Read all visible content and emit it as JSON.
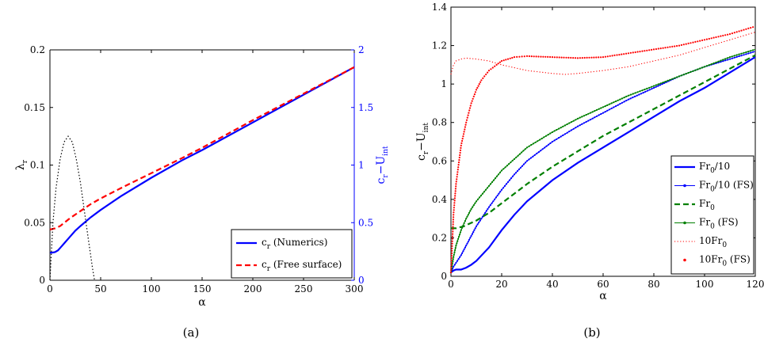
{
  "chart_data": [
    {
      "type": "line",
      "panel_label": "(a)",
      "xlabel": "α",
      "ylabel": {
        "main": "λ",
        "sub": "r"
      },
      "ylabel_right": {
        "main": "c",
        "sub": "r",
        "rest": "−U",
        "sub2": "int"
      },
      "xlim": [
        0,
        300
      ],
      "ylim": [
        0,
        0.2
      ],
      "ylim_right": [
        0,
        2
      ],
      "xticks": [
        "0",
        "50",
        "100",
        "150",
        "200",
        "250",
        "300"
      ],
      "yticks": [
        "0",
        "0.05",
        "0.1",
        "0.15",
        "0.2"
      ],
      "yticks_right": [
        "0",
        "0.5",
        "1",
        "1.5",
        "2"
      ],
      "grid": false,
      "legend_position": "bottom-right",
      "colors": {
        "numerics": "#0000ff",
        "free_surface": "#ff0000",
        "growth": "#000000",
        "right_axis": "#0000ff"
      },
      "series": [
        {
          "name": "c_r (Numerics)",
          "legend": {
            "main": "c",
            "sub": "r",
            "rest": " (Numerics)"
          },
          "axis": "right",
          "style": "solid",
          "x": [
            0,
            2,
            5,
            8,
            10,
            15,
            20,
            25,
            30,
            40,
            50,
            70,
            100,
            130,
            150,
            200,
            250,
            300
          ],
          "y": [
            0.24,
            0.24,
            0.245,
            0.26,
            0.28,
            0.33,
            0.38,
            0.43,
            0.47,
            0.545,
            0.61,
            0.73,
            0.89,
            1.04,
            1.13,
            1.37,
            1.61,
            1.85
          ]
        },
        {
          "name": "c_r (Free surface)",
          "legend": {
            "main": "c",
            "sub": "r",
            "rest": " (Free surface)"
          },
          "axis": "right",
          "style": "dashed",
          "x": [
            0,
            5,
            10,
            20,
            30,
            40,
            50,
            70,
            100,
            130,
            150,
            200,
            250,
            300
          ],
          "y": [
            0.44,
            0.45,
            0.47,
            0.54,
            0.6,
            0.66,
            0.71,
            0.8,
            0.93,
            1.06,
            1.15,
            1.39,
            1.62,
            1.85
          ]
        },
        {
          "name": "",
          "axis": "left",
          "style": "dotted",
          "x": [
            0,
            3,
            6,
            10,
            14,
            18,
            22,
            26,
            30,
            34,
            38,
            42,
            44
          ],
          "y": [
            0,
            0.05,
            0.08,
            0.105,
            0.12,
            0.125,
            0.12,
            0.105,
            0.085,
            0.06,
            0.035,
            0.01,
            0
          ]
        }
      ]
    },
    {
      "type": "line",
      "panel_label": "(b)",
      "xlabel": "α",
      "ylabel": {
        "main": "c",
        "sub": "r",
        "rest": "−U",
        "sub2": "int"
      },
      "xlim": [
        0,
        120
      ],
      "ylim": [
        0,
        1.4
      ],
      "xticks": [
        "0",
        "20",
        "40",
        "60",
        "80",
        "100",
        "120"
      ],
      "yticks": [
        "0",
        "0.2",
        "0.4",
        "0.6",
        "0.8",
        "1",
        "1.2",
        "1.4"
      ],
      "grid": false,
      "legend_position": "bottom-right",
      "colors": {
        "blue": "#0000ff",
        "green": "#007f00",
        "red": "#ff0000"
      },
      "series": [
        {
          "name": "Fr0/10",
          "legend": {
            "main": "Fr",
            "sub": "0",
            "rest": "/10"
          },
          "style": "solid",
          "color": "blue",
          "x": [
            0,
            1,
            2,
            4,
            6,
            8,
            10,
            15,
            20,
            25,
            30,
            40,
            50,
            60,
            70,
            80,
            90,
            100,
            110,
            120
          ],
          "y": [
            0.02,
            0.03,
            0.035,
            0.035,
            0.045,
            0.06,
            0.08,
            0.15,
            0.24,
            0.32,
            0.39,
            0.5,
            0.59,
            0.67,
            0.75,
            0.83,
            0.91,
            0.98,
            1.06,
            1.14
          ]
        },
        {
          "name": "Fr0/10 (FS)",
          "legend": {
            "main": "Fr",
            "sub": "0",
            "rest": "/10 (FS)"
          },
          "style": "markers-line",
          "color": "blue",
          "x": [
            0,
            1,
            2,
            4,
            6,
            8,
            10,
            15,
            20,
            25,
            30,
            40,
            50,
            60,
            70,
            80,
            90,
            100,
            110,
            120
          ],
          "y": [
            0.02,
            0.05,
            0.07,
            0.11,
            0.16,
            0.21,
            0.26,
            0.36,
            0.45,
            0.53,
            0.6,
            0.7,
            0.78,
            0.85,
            0.92,
            0.98,
            1.04,
            1.09,
            1.13,
            1.17
          ]
        },
        {
          "name": "Fr0",
          "legend": {
            "main": "Fr",
            "sub": "0",
            "rest": ""
          },
          "style": "dashed",
          "color": "green",
          "x": [
            0,
            2,
            5,
            10,
            15,
            20,
            25,
            30,
            40,
            50,
            60,
            70,
            80,
            90,
            100,
            110,
            120
          ],
          "y": [
            0.25,
            0.25,
            0.26,
            0.29,
            0.33,
            0.38,
            0.43,
            0.48,
            0.57,
            0.65,
            0.73,
            0.8,
            0.87,
            0.94,
            1.01,
            1.08,
            1.15
          ]
        },
        {
          "name": "Fr0 (FS)",
          "legend": {
            "main": "Fr",
            "sub": "0",
            "rest": " (FS)"
          },
          "style": "markers-line",
          "color": "green",
          "x": [
            0,
            1,
            2,
            4,
            6,
            8,
            10,
            15,
            20,
            25,
            30,
            40,
            50,
            60,
            70,
            80,
            90,
            100,
            110,
            120
          ],
          "y": [
            0.02,
            0.1,
            0.16,
            0.24,
            0.3,
            0.35,
            0.39,
            0.47,
            0.55,
            0.61,
            0.67,
            0.75,
            0.82,
            0.88,
            0.94,
            0.99,
            1.04,
            1.09,
            1.14,
            1.18
          ]
        },
        {
          "name": "10Fr0",
          "legend": {
            "main": "10Fr",
            "sub": "0",
            "rest": ""
          },
          "style": "dotted",
          "color": "red",
          "x": [
            0,
            1,
            2,
            4,
            6,
            10,
            15,
            20,
            30,
            40,
            45,
            50,
            60,
            70,
            80,
            90,
            100,
            110,
            120
          ],
          "y": [
            1.05,
            1.1,
            1.12,
            1.13,
            1.135,
            1.13,
            1.12,
            1.1,
            1.07,
            1.055,
            1.05,
            1.055,
            1.07,
            1.09,
            1.12,
            1.15,
            1.19,
            1.23,
            1.27
          ]
        },
        {
          "name": "10Fr0 (FS)",
          "legend": {
            "main": "10Fr",
            "sub": "0",
            "rest": " (FS)"
          },
          "style": "markers",
          "color": "red",
          "x": [
            0,
            1,
            2,
            3,
            4,
            6,
            8,
            10,
            12,
            15,
            18,
            20,
            25,
            30,
            40,
            50,
            60,
            70,
            80,
            90,
            100,
            110,
            120
          ],
          "y": [
            0.02,
            0.32,
            0.48,
            0.58,
            0.68,
            0.8,
            0.9,
            0.97,
            1.02,
            1.07,
            1.1,
            1.12,
            1.14,
            1.145,
            1.14,
            1.135,
            1.14,
            1.16,
            1.18,
            1.2,
            1.23,
            1.26,
            1.3
          ]
        }
      ]
    }
  ]
}
